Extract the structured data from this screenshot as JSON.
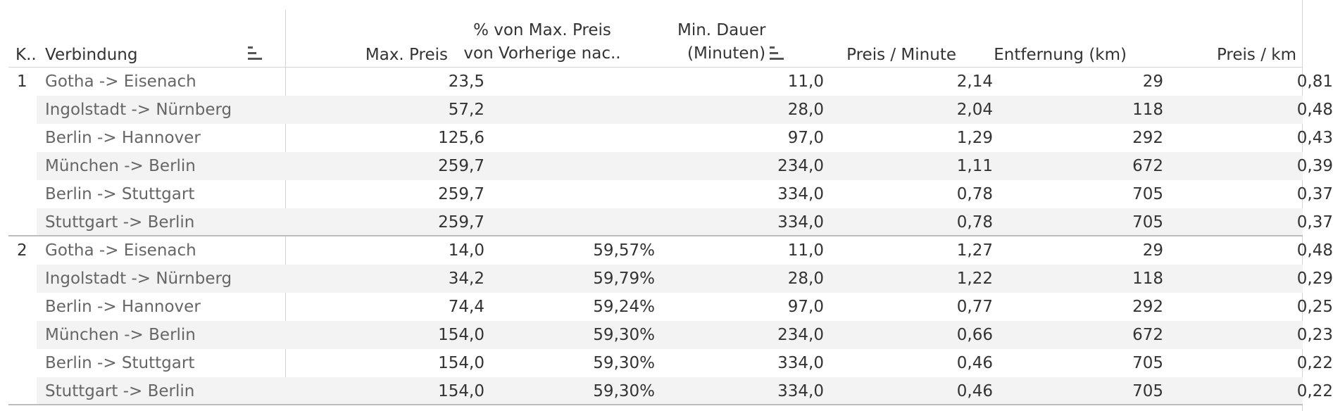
{
  "columns": {
    "k": "K..",
    "verbindung": "Verbindung",
    "max_preis": "Max. Preis",
    "pct_line1": "% von Max. Preis",
    "pct_line2": "von Vorherige nac..",
    "dauer_line1": "Min. Dauer",
    "dauer_line2": "(Minuten)",
    "preis_minute": "Preis / Minute",
    "entfernung": "Entfernung (km)",
    "preis_km": "Preis / km"
  },
  "groups": [
    {
      "label": "1",
      "rows": [
        {
          "verbindung": "Gotha -> Eisenach",
          "max_preis": "23,5",
          "pct": "",
          "dauer": "11,0",
          "preis_minute": "2,14",
          "entfernung": "29",
          "preis_km": "0,81"
        },
        {
          "verbindung": "Ingolstadt -> Nürnberg",
          "max_preis": "57,2",
          "pct": "",
          "dauer": "28,0",
          "preis_minute": "2,04",
          "entfernung": "118",
          "preis_km": "0,48"
        },
        {
          "verbindung": "Berlin -> Hannover",
          "max_preis": "125,6",
          "pct": "",
          "dauer": "97,0",
          "preis_minute": "1,29",
          "entfernung": "292",
          "preis_km": "0,43"
        },
        {
          "verbindung": "München -> Berlin",
          "max_preis": "259,7",
          "pct": "",
          "dauer": "234,0",
          "preis_minute": "1,11",
          "entfernung": "672",
          "preis_km": "0,39"
        },
        {
          "verbindung": "Berlin -> Stuttgart",
          "max_preis": "259,7",
          "pct": "",
          "dauer": "334,0",
          "preis_minute": "0,78",
          "entfernung": "705",
          "preis_km": "0,37"
        },
        {
          "verbindung": "Stuttgart -> Berlin",
          "max_preis": "259,7",
          "pct": "",
          "dauer": "334,0",
          "preis_minute": "0,78",
          "entfernung": "705",
          "preis_km": "0,37"
        }
      ]
    },
    {
      "label": "2",
      "rows": [
        {
          "verbindung": "Gotha -> Eisenach",
          "max_preis": "14,0",
          "pct": "59,57%",
          "dauer": "11,0",
          "preis_minute": "1,27",
          "entfernung": "29",
          "preis_km": "0,48"
        },
        {
          "verbindung": "Ingolstadt -> Nürnberg",
          "max_preis": "34,2",
          "pct": "59,79%",
          "dauer": "28,0",
          "preis_minute": "1,22",
          "entfernung": "118",
          "preis_km": "0,29"
        },
        {
          "verbindung": "Berlin -> Hannover",
          "max_preis": "74,4",
          "pct": "59,24%",
          "dauer": "97,0",
          "preis_minute": "0,77",
          "entfernung": "292",
          "preis_km": "0,25"
        },
        {
          "verbindung": "München -> Berlin",
          "max_preis": "154,0",
          "pct": "59,30%",
          "dauer": "234,0",
          "preis_minute": "0,66",
          "entfernung": "672",
          "preis_km": "0,23"
        },
        {
          "verbindung": "Berlin -> Stuttgart",
          "max_preis": "154,0",
          "pct": "59,30%",
          "dauer": "334,0",
          "preis_minute": "0,46",
          "entfernung": "705",
          "preis_km": "0,22"
        },
        {
          "verbindung": "Stuttgart -> Berlin",
          "max_preis": "154,0",
          "pct": "59,30%",
          "dauer": "334,0",
          "preis_minute": "0,46",
          "entfernung": "705",
          "preis_km": "0,22"
        }
      ]
    }
  ]
}
